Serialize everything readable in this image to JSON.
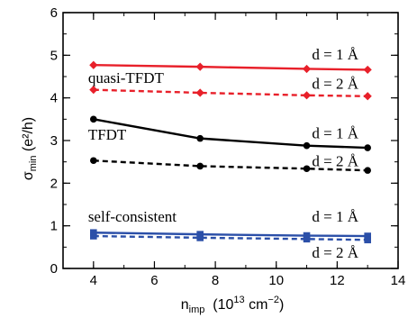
{
  "chart_data": {
    "type": "line",
    "xlabel": {
      "main": "n",
      "sub": "imp",
      "units_prefix": "(10",
      "units_exp1": "13",
      "units_mid": " cm",
      "units_exp2": "−2",
      "units_suffix": ")"
    },
    "ylabel": {
      "main": "σ",
      "sub": "min",
      "units": " (e²/h)"
    },
    "xlim": [
      3,
      14
    ],
    "ylim": [
      0,
      6
    ],
    "xticks": [
      4,
      6,
      8,
      10,
      12,
      14
    ],
    "yticks": [
      0,
      1,
      2,
      3,
      4,
      5,
      6
    ],
    "grid": false,
    "annotations": [
      {
        "text": "quasi-TFDT",
        "x": 4.0,
        "y": 4.35
      },
      {
        "text": "TFDT",
        "x": 4.0,
        "y": 3.02
      },
      {
        "text": "self-consistent",
        "x": 4.0,
        "y": 1.1
      }
    ],
    "series": [
      {
        "label": "d = 1 Å",
        "color": "#e8202a",
        "dash": false,
        "marker": "diamond",
        "x": [
          4,
          7.5,
          11,
          13
        ],
        "y": [
          4.77,
          4.73,
          4.68,
          4.66
        ],
        "label_pos": {
          "x": 12.7,
          "y": 4.9
        }
      },
      {
        "label": "d = 2 Å",
        "color": "#e8202a",
        "dash": true,
        "marker": "diamond",
        "x": [
          4,
          7.5,
          11,
          13
        ],
        "y": [
          4.19,
          4.12,
          4.06,
          4.04
        ],
        "label_pos": {
          "x": 12.7,
          "y": 4.22
        }
      },
      {
        "label": "d = 1 Å",
        "color": "#000000",
        "dash": false,
        "marker": "circle",
        "x": [
          4,
          7.5,
          11,
          13
        ],
        "y": [
          3.5,
          3.05,
          2.88,
          2.83
        ],
        "label_pos": {
          "x": 12.7,
          "y": 3.05
        }
      },
      {
        "label": "d = 2 Å",
        "color": "#000000",
        "dash": true,
        "marker": "circle",
        "x": [
          4,
          7.5,
          11,
          13
        ],
        "y": [
          2.53,
          2.4,
          2.34,
          2.3
        ],
        "label_pos": {
          "x": 12.7,
          "y": 2.4
        }
      },
      {
        "label": "d = 1 Å",
        "color": "#2b4fa8",
        "dash": false,
        "marker": "square",
        "x": [
          4,
          7.5,
          11,
          13
        ],
        "y": [
          0.84,
          0.8,
          0.77,
          0.76
        ],
        "label_pos": {
          "x": 12.7,
          "y": 1.1
        }
      },
      {
        "label": "d = 2 Å",
        "color": "#2b4fa8",
        "dash": true,
        "marker": "square",
        "x": [
          4,
          7.5,
          11,
          13
        ],
        "y": [
          0.76,
          0.72,
          0.69,
          0.67
        ],
        "label_pos": {
          "x": 12.7,
          "y": 0.25
        }
      }
    ]
  }
}
